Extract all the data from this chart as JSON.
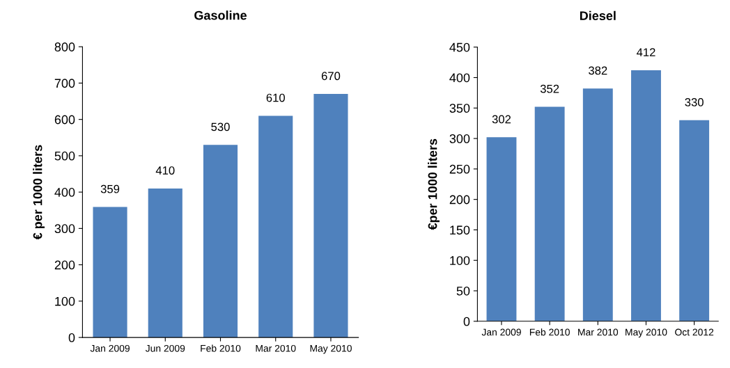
{
  "chart_data": [
    {
      "type": "bar",
      "title": "Gasoline",
      "ylabel": "€ per 1000 liters",
      "categories": [
        "Jan 2009",
        "Jun 2009",
        "Feb 2010",
        "Mar 2010",
        "May 2010"
      ],
      "values": [
        359,
        410,
        530,
        610,
        670
      ],
      "color": "#4f81bd",
      "ylim": [
        0,
        800
      ],
      "yticks": [
        0,
        100,
        200,
        300,
        400,
        500,
        600,
        700,
        800
      ],
      "data_labels": true,
      "grid": false,
      "legend": false
    },
    {
      "type": "bar",
      "title": "Diesel",
      "ylabel": "€per 1000 liters",
      "categories": [
        "Jan 2009",
        "Feb 2010",
        "Mar 2010",
        "May 2010",
        "Oct 2012"
      ],
      "values": [
        302,
        352,
        382,
        412,
        330
      ],
      "color": "#4f81bd",
      "ylim": [
        0,
        450
      ],
      "yticks": [
        0,
        50,
        100,
        150,
        200,
        250,
        300,
        350,
        400,
        450
      ],
      "data_labels": true,
      "grid": false,
      "legend": false
    }
  ]
}
